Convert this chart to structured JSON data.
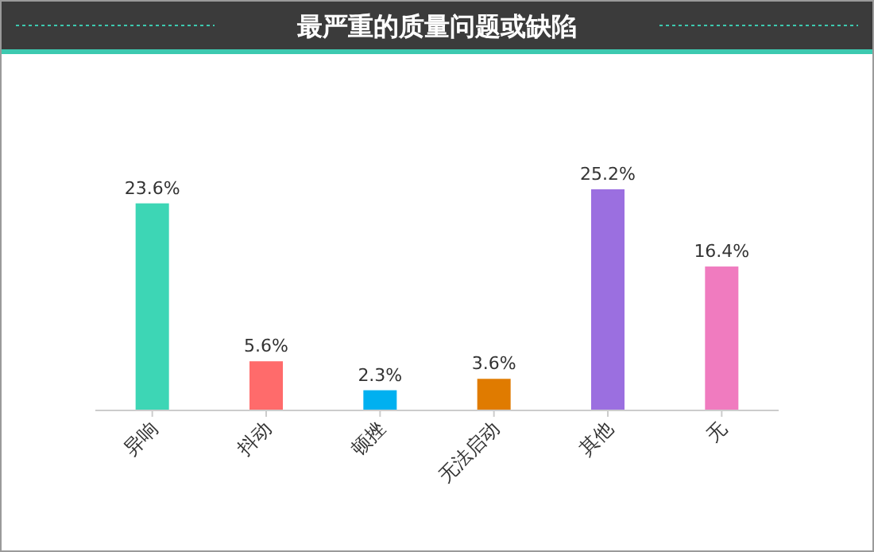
{
  "chart_data": {
    "type": "bar",
    "title": "最严重的质量问题或缺陷",
    "categories": [
      "异响",
      "抖动",
      "顿挫",
      "无法启动",
      "其他",
      "无"
    ],
    "values": [
      23.6,
      5.6,
      2.3,
      3.6,
      25.2,
      16.4
    ],
    "colors": [
      "#3dd6b5",
      "#ff6b6b",
      "#00b0f0",
      "#e07b00",
      "#9b6fe0",
      "#f07bbf"
    ],
    "value_labels": [
      "23.6%",
      "5.6%",
      "2.3%",
      "3.6%",
      "25.2%",
      "16.4%"
    ]
  }
}
